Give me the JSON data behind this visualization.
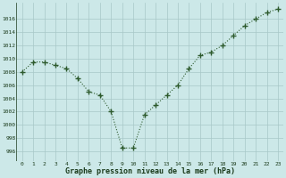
{
  "x": [
    0,
    1,
    2,
    3,
    4,
    5,
    6,
    7,
    8,
    9,
    10,
    11,
    12,
    13,
    14,
    15,
    16,
    17,
    18,
    19,
    20,
    21,
    22,
    23
  ],
  "y": [
    1008,
    1009.5,
    1009.5,
    1009,
    1008.5,
    1007,
    1005,
    1004.5,
    1002,
    996.5,
    996.5,
    1001.5,
    1003,
    1004.5,
    1006,
    1008.5,
    1010.5,
    1011,
    1012,
    1013.5,
    1015,
    1016,
    1017,
    1017.5
  ],
  "ylim": [
    994.5,
    1018.5
  ],
  "yticks": [
    996,
    998,
    1000,
    1002,
    1004,
    1006,
    1008,
    1010,
    1012,
    1014,
    1016
  ],
  "xtick_labels": [
    "0",
    "1",
    "2",
    "3",
    "4",
    "5",
    "6",
    "7",
    "8",
    "9",
    "10",
    "11",
    "12",
    "13",
    "14",
    "15",
    "16",
    "17",
    "18",
    "19",
    "20",
    "21",
    "22",
    "23"
  ],
  "xlabel": "Graphe pression niveau de la mer (hPa)",
  "line_color": "#2d5a2d",
  "bg_color": "#cce8e8",
  "grid_color": "#a8c8c8",
  "text_color": "#1a3a1a"
}
